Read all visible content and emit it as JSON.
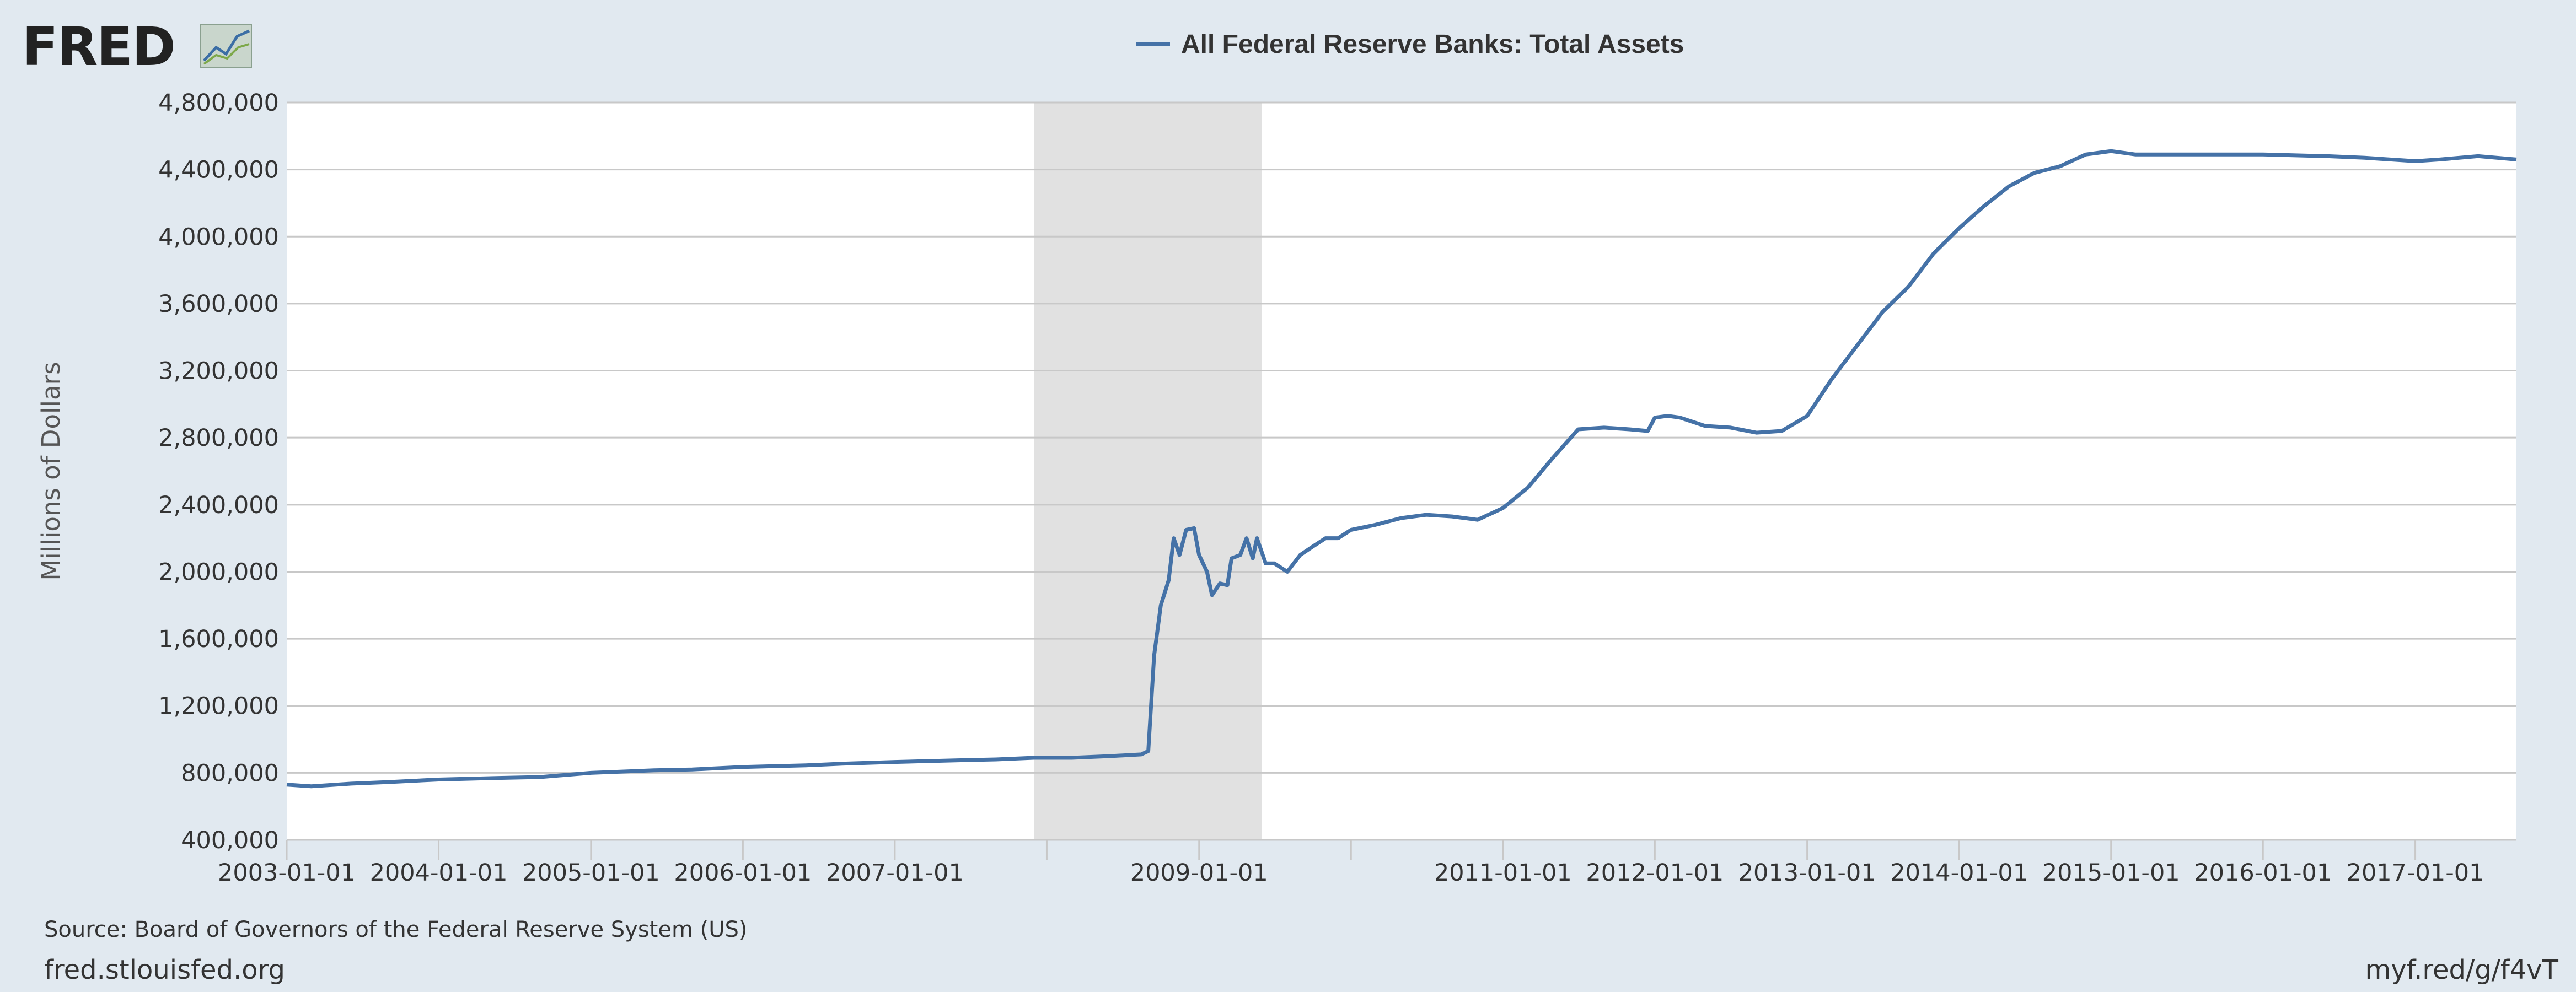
{
  "logo": {
    "text": "FRED"
  },
  "footer": {
    "source": "Source: Board of Governors of the Federal Reserve System (US)",
    "site": "fred.stlouisfed.org",
    "short_link": "myf.red/g/f4vT"
  },
  "colors": {
    "series": "#4572a7",
    "background": "#e1e9f0",
    "plot_bg": "#ffffff",
    "recession": "#e1e1e1",
    "grid": "#c8c8c8"
  },
  "chart_data": {
    "type": "line",
    "ylabel": "Millions of Dollars",
    "xlabel": "",
    "x_range": [
      "2003-01-01",
      "2017-09-01"
    ],
    "ylim": [
      400000,
      4800000
    ],
    "y_ticks": [
      400000,
      800000,
      1200000,
      1600000,
      2000000,
      2400000,
      2800000,
      3200000,
      3600000,
      4000000,
      4400000,
      4800000
    ],
    "y_tick_labels": [
      "400,000",
      "800,000",
      "1,200,000",
      "1,600,000",
      "2,000,000",
      "2,400,000",
      "2,800,000",
      "3,200,000",
      "3,600,000",
      "4,000,000",
      "4,400,000",
      "4,800,000"
    ],
    "x_ticks": [
      "2003-01-01",
      "2004-01-01",
      "2005-01-01",
      "2006-01-01",
      "2007-01-01",
      "2008-01-01",
      "2009-01-01",
      "2010-01-01",
      "2011-01-01",
      "2012-01-01",
      "2013-01-01",
      "2014-01-01",
      "2015-01-01",
      "2016-01-01",
      "2017-01-01"
    ],
    "x_tick_labels": [
      "2003-01-01",
      "2004-01-01",
      "2005-01-01",
      "2006-01-01",
      "2007-01-01",
      "",
      "2009-01-01",
      "",
      "2011-01-01",
      "2012-01-01",
      "2013-01-01",
      "2014-01-01",
      "2015-01-01",
      "2016-01-01",
      "2017-01-01"
    ],
    "grid": true,
    "legend": "top-center",
    "recessions": [
      {
        "start": "2007-12-01",
        "end": "2009-06-01"
      }
    ],
    "series": [
      {
        "name": "All Federal Reserve Banks: Total Assets",
        "points": [
          [
            "2003-01-01",
            730000
          ],
          [
            "2003-03-01",
            720000
          ],
          [
            "2003-06-01",
            735000
          ],
          [
            "2003-09-01",
            745000
          ],
          [
            "2004-01-01",
            760000
          ],
          [
            "2004-06-01",
            770000
          ],
          [
            "2004-09-01",
            775000
          ],
          [
            "2005-01-01",
            800000
          ],
          [
            "2005-06-01",
            815000
          ],
          [
            "2005-09-01",
            820000
          ],
          [
            "2006-01-01",
            835000
          ],
          [
            "2006-06-01",
            845000
          ],
          [
            "2006-09-01",
            855000
          ],
          [
            "2007-01-01",
            865000
          ],
          [
            "2007-06-01",
            875000
          ],
          [
            "2007-09-01",
            880000
          ],
          [
            "2007-12-01",
            890000
          ],
          [
            "2008-03-01",
            890000
          ],
          [
            "2008-06-01",
            900000
          ],
          [
            "2008-08-15",
            910000
          ],
          [
            "2008-09-01",
            930000
          ],
          [
            "2008-09-15",
            1500000
          ],
          [
            "2008-10-01",
            1800000
          ],
          [
            "2008-10-20",
            1950000
          ],
          [
            "2008-11-01",
            2200000
          ],
          [
            "2008-11-15",
            2100000
          ],
          [
            "2008-12-01",
            2250000
          ],
          [
            "2008-12-20",
            2260000
          ],
          [
            "2009-01-01",
            2100000
          ],
          [
            "2009-01-20",
            2000000
          ],
          [
            "2009-02-01",
            1860000
          ],
          [
            "2009-02-20",
            1930000
          ],
          [
            "2009-03-10",
            1920000
          ],
          [
            "2009-03-20",
            2080000
          ],
          [
            "2009-04-10",
            2100000
          ],
          [
            "2009-04-25",
            2200000
          ],
          [
            "2009-05-10",
            2080000
          ],
          [
            "2009-05-20",
            2200000
          ],
          [
            "2009-06-10",
            2050000
          ],
          [
            "2009-07-01",
            2050000
          ],
          [
            "2009-08-01",
            2000000
          ],
          [
            "2009-09-01",
            2100000
          ],
          [
            "2009-10-01",
            2150000
          ],
          [
            "2009-11-01",
            2200000
          ],
          [
            "2009-12-01",
            2200000
          ],
          [
            "2010-01-01",
            2250000
          ],
          [
            "2010-03-01",
            2280000
          ],
          [
            "2010-05-01",
            2320000
          ],
          [
            "2010-07-01",
            2340000
          ],
          [
            "2010-09-01",
            2330000
          ],
          [
            "2010-11-01",
            2310000
          ],
          [
            "2011-01-01",
            2380000
          ],
          [
            "2011-03-01",
            2500000
          ],
          [
            "2011-05-01",
            2680000
          ],
          [
            "2011-07-01",
            2850000
          ],
          [
            "2011-09-01",
            2860000
          ],
          [
            "2011-11-01",
            2850000
          ],
          [
            "2011-12-15",
            2840000
          ],
          [
            "2012-01-01",
            2920000
          ],
          [
            "2012-02-01",
            2930000
          ],
          [
            "2012-03-01",
            2920000
          ],
          [
            "2012-05-01",
            2870000
          ],
          [
            "2012-07-01",
            2860000
          ],
          [
            "2012-09-01",
            2830000
          ],
          [
            "2012-11-01",
            2840000
          ],
          [
            "2013-01-01",
            2930000
          ],
          [
            "2013-03-01",
            3150000
          ],
          [
            "2013-05-01",
            3350000
          ],
          [
            "2013-07-01",
            3550000
          ],
          [
            "2013-09-01",
            3700000
          ],
          [
            "2013-11-01",
            3900000
          ],
          [
            "2014-01-01",
            4050000
          ],
          [
            "2014-03-01",
            4180000
          ],
          [
            "2014-05-01",
            4300000
          ],
          [
            "2014-07-01",
            4380000
          ],
          [
            "2014-09-01",
            4420000
          ],
          [
            "2014-11-01",
            4490000
          ],
          [
            "2015-01-01",
            4510000
          ],
          [
            "2015-03-01",
            4490000
          ],
          [
            "2015-06-01",
            4490000
          ],
          [
            "2015-09-01",
            4490000
          ],
          [
            "2016-01-01",
            4490000
          ],
          [
            "2016-06-01",
            4480000
          ],
          [
            "2016-09-01",
            4470000
          ],
          [
            "2017-01-01",
            4450000
          ],
          [
            "2017-03-01",
            4460000
          ],
          [
            "2017-06-01",
            4480000
          ],
          [
            "2017-09-01",
            4460000
          ]
        ]
      }
    ]
  }
}
